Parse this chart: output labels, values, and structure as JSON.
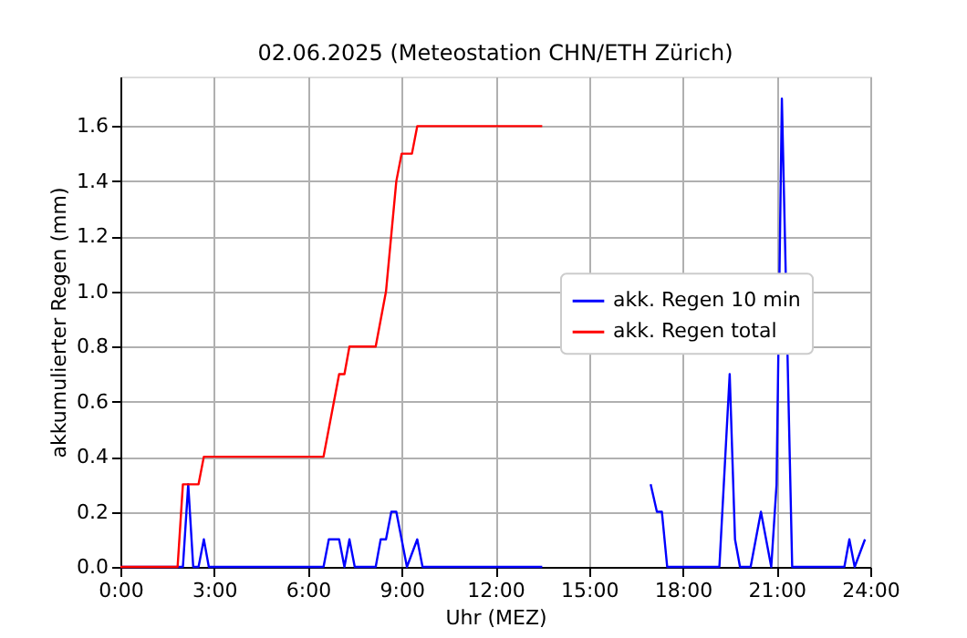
{
  "chart_data": {
    "type": "line",
    "title": "02.06.2025  (Meteostation CHN/ETH Zürich)",
    "xlabel": "Uhr (MEZ)",
    "ylabel": "akkumulierter Regen (mm)",
    "series": [
      {
        "name": "akk. Regen 10 min",
        "color": "#0000ff",
        "x": [
          0,
          2.0,
          2.17,
          2.33,
          2.5,
          2.67,
          2.83,
          6.5,
          6.67,
          7.0,
          7.17,
          7.33,
          7.5,
          8.17,
          8.33,
          8.5,
          8.67,
          8.83,
          9.17,
          9.5,
          9.67,
          13.5,
          15.0,
          16.97,
          17.17,
          17.33,
          17.5,
          19.17,
          19.5,
          19.67,
          19.83,
          20.17,
          20.5,
          20.83,
          21.0,
          21.17,
          21.5,
          23.17,
          23.33,
          23.5,
          23.83
        ],
        "values": [
          0,
          0,
          0.3,
          0,
          0,
          0.1,
          0,
          0,
          0.1,
          0.1,
          0,
          0.1,
          0,
          0,
          0.1,
          0.1,
          0.2,
          0.2,
          0,
          0.1,
          0,
          0,
          null,
          0.3,
          0.2,
          0.2,
          0,
          0,
          0.7,
          0.1,
          0,
          0,
          0.2,
          0,
          0.3,
          1.7,
          0,
          0,
          0.1,
          0,
          0.1
        ]
      },
      {
        "name": "akk. Regen total",
        "color": "#ff0000",
        "x": [
          0,
          1.83,
          2.0,
          2.5,
          2.67,
          6.5,
          7.0,
          7.17,
          7.33,
          8.17,
          8.5,
          8.83,
          9.0,
          9.33,
          9.5,
          13.5
        ],
        "values": [
          0,
          0,
          0.3,
          0.3,
          0.4,
          0.4,
          0.7,
          0.7,
          0.8,
          0.8,
          1.0,
          1.4,
          1.5,
          1.5,
          1.6,
          1.6
        ]
      }
    ],
    "xlim": [
      0,
      24
    ],
    "xticks": [
      {
        "value": 0,
        "label": "0:00"
      },
      {
        "value": 3,
        "label": "3:00"
      },
      {
        "value": 6,
        "label": "6:00"
      },
      {
        "value": 9,
        "label": "9:00"
      },
      {
        "value": 12,
        "label": "12:00"
      },
      {
        "value": 15,
        "label": "15:00"
      },
      {
        "value": 18,
        "label": "18:00"
      },
      {
        "value": 21,
        "label": "21:00"
      },
      {
        "value": 24,
        "label": "24:00"
      }
    ],
    "ylim": [
      0,
      1.78
    ],
    "yticks": [
      {
        "value": 0,
        "label": "0.0"
      },
      {
        "value": 0.2,
        "label": "0.2"
      },
      {
        "value": 0.4,
        "label": "0.4"
      },
      {
        "value": 0.6,
        "label": "0.6"
      },
      {
        "value": 0.8,
        "label": "0.8"
      },
      {
        "value": 1.0,
        "label": "1.0"
      },
      {
        "value": 1.2,
        "label": "1.2"
      },
      {
        "value": 1.4,
        "label": "1.4"
      },
      {
        "value": 1.6,
        "label": "1.6"
      }
    ],
    "grid": true,
    "legend": "right",
    "line_style": "solid",
    "marker": "none"
  }
}
